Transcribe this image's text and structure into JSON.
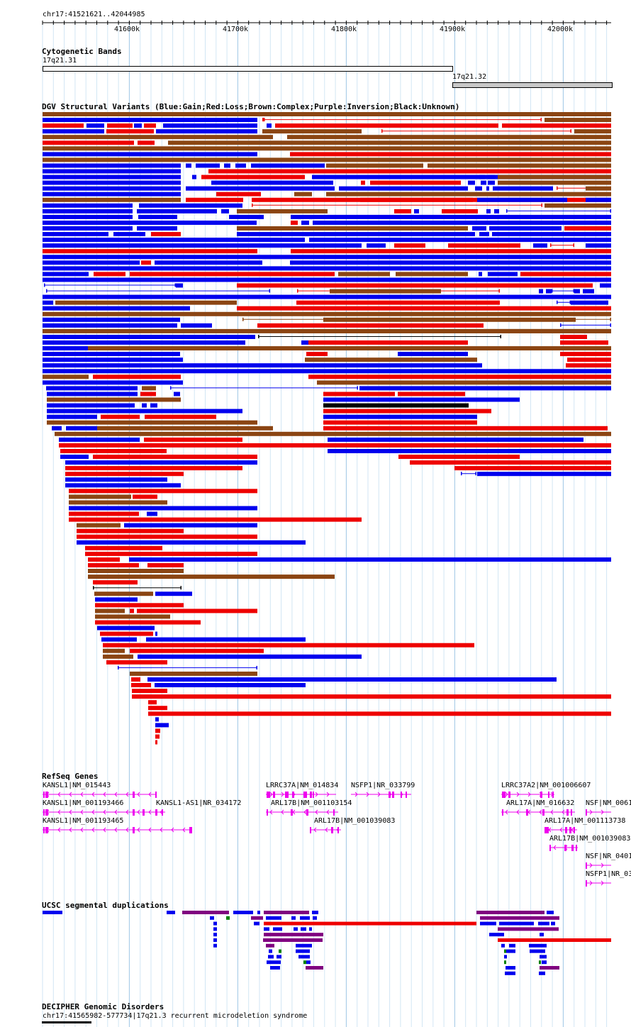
{
  "ruler": {
    "position": "chr17:41521621..42044985",
    "ticks": [
      "41600k",
      "41700k",
      "41800k",
      "41900k",
      "42000k"
    ]
  },
  "cytoband": {
    "title": "Cytogenetic Bands",
    "band1": "17q21.31",
    "band2": "17q21.32"
  },
  "dgv": {
    "title": "DGV Structural Variants (Blue:Gain;Red:Loss;Brown:Complex;Purple:Inversion;Black:Unknown)",
    "colors": {
      "gain": "#0000ee",
      "loss": "#ee0000",
      "complex": "#8b4513",
      "inversion": "#800080",
      "unknown": "#000000"
    }
  },
  "refseq": {
    "title": "RefSeq Genes",
    "labels": [
      "KANSL1|NM_015443",
      "KANSL1|NM_001193466",
      "KANSL1-AS1|NR_034172",
      "KANSL1|NM_001193465",
      "LRRC37A|NM_014834",
      "NSFP1|NR_033799",
      "ARL17B|NM_001103154",
      "ARL17B|NM_001039083",
      "LRRC37A2|NM_001006607",
      "ARL17A|NM_016632",
      "NSF|NM_0061",
      "ARL17A|NM_001113738",
      "ARL17B|NM_001039083",
      "NSF|NR_0401",
      "NSFP1|NR_03"
    ],
    "color": "#ee00ee"
  },
  "segdup": {
    "title": "UCSC segmental duplications"
  },
  "decipher": {
    "title": "DECIPHER Genomic Disorders",
    "item": "chr17:41565982-577734|17q21.3 recurrent microdeletion syndrome"
  }
}
